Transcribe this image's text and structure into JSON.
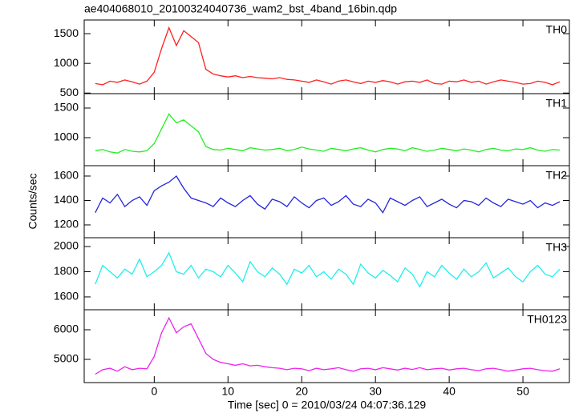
{
  "chart_data": [
    {
      "type": "line",
      "title": "ae404068010_20100324040736_wam2_bst_4band_16bin.qdp",
      "label": "TH0",
      "color": "#ff2020",
      "x": [
        -8,
        -7,
        -6,
        -5,
        -4,
        -3,
        -2,
        -1,
        0,
        1,
        2,
        3,
        4,
        5,
        6,
        7,
        8,
        9,
        10,
        11,
        12,
        13,
        14,
        15,
        16,
        17,
        18,
        19,
        20,
        21,
        22,
        23,
        24,
        25,
        26,
        27,
        28,
        29,
        30,
        31,
        32,
        33,
        34,
        35,
        36,
        37,
        38,
        39,
        40,
        41,
        42,
        43,
        44,
        45,
        46,
        47,
        48,
        49,
        50,
        51,
        52,
        53,
        54,
        55
      ],
      "values": [
        660,
        640,
        700,
        680,
        720,
        690,
        650,
        700,
        850,
        1250,
        1600,
        1300,
        1550,
        1450,
        1350,
        900,
        820,
        790,
        770,
        790,
        760,
        780,
        760,
        750,
        740,
        760,
        730,
        720,
        700,
        680,
        720,
        690,
        650,
        700,
        720,
        690,
        660,
        700,
        680,
        710,
        690,
        650,
        690,
        700,
        680,
        720,
        660,
        650,
        700,
        690,
        720,
        680,
        700,
        650,
        690,
        720,
        700,
        680,
        650,
        660,
        700,
        680,
        640,
        690
      ],
      "xlim": [
        -9.5,
        56.3
      ],
      "xticks": [
        0,
        10,
        20,
        30,
        40,
        50
      ],
      "ylim": [
        490,
        1730
      ],
      "yticks": [
        500,
        1000,
        1500
      ]
    },
    {
      "type": "line",
      "label": "TH1",
      "color": "#22ee22",
      "x": [
        -8,
        -7,
        -6,
        -5,
        -4,
        -3,
        -2,
        -1,
        0,
        1,
        2,
        3,
        4,
        5,
        6,
        7,
        8,
        9,
        10,
        11,
        12,
        13,
        14,
        15,
        16,
        17,
        18,
        19,
        20,
        21,
        22,
        23,
        24,
        25,
        26,
        27,
        28,
        29,
        30,
        31,
        32,
        33,
        34,
        35,
        36,
        37,
        38,
        39,
        40,
        41,
        42,
        43,
        44,
        45,
        46,
        47,
        48,
        49,
        50,
        51,
        52,
        53,
        54,
        55
      ],
      "values": [
        780,
        800,
        760,
        740,
        800,
        770,
        760,
        780,
        900,
        1150,
        1400,
        1250,
        1300,
        1200,
        1100,
        850,
        800,
        790,
        820,
        800,
        780,
        830,
        810,
        790,
        800,
        820,
        780,
        800,
        840,
        810,
        790,
        770,
        820,
        800,
        780,
        810,
        830,
        790,
        760,
        800,
        820,
        810,
        780,
        830,
        800,
        770,
        790,
        820,
        800,
        780,
        810,
        790,
        760,
        800,
        820,
        790,
        780,
        810,
        800,
        830,
        790,
        770,
        800,
        790
      ],
      "xlim": [
        -9.5,
        56.3
      ],
      "xticks": [
        0,
        10,
        20,
        30,
        40,
        50
      ],
      "ylim": [
        527,
        1743
      ],
      "yticks": [
        1000,
        1500
      ]
    },
    {
      "type": "line",
      "label": "TH2",
      "color": "#2626dd",
      "ylabel": "Counts/sec",
      "x": [
        -8,
        -7,
        -6,
        -5,
        -4,
        -3,
        -2,
        -1,
        0,
        1,
        2,
        3,
        4,
        5,
        6,
        7,
        8,
        9,
        10,
        11,
        12,
        13,
        14,
        15,
        16,
        17,
        18,
        19,
        20,
        21,
        22,
        23,
        24,
        25,
        26,
        27,
        28,
        29,
        30,
        31,
        32,
        33,
        34,
        35,
        36,
        37,
        38,
        39,
        40,
        41,
        42,
        43,
        44,
        45,
        46,
        47,
        48,
        49,
        50,
        51,
        52,
        53,
        54,
        55
      ],
      "values": [
        1300,
        1420,
        1380,
        1450,
        1350,
        1400,
        1430,
        1360,
        1480,
        1520,
        1550,
        1600,
        1500,
        1420,
        1400,
        1380,
        1350,
        1420,
        1380,
        1350,
        1400,
        1440,
        1370,
        1330,
        1410,
        1390,
        1350,
        1430,
        1380,
        1340,
        1400,
        1420,
        1360,
        1390,
        1440,
        1370,
        1350,
        1410,
        1380,
        1300,
        1420,
        1390,
        1360,
        1400,
        1430,
        1350,
        1380,
        1410,
        1370,
        1340,
        1400,
        1390,
        1360,
        1420,
        1380,
        1350,
        1410,
        1390,
        1370,
        1400,
        1340,
        1380,
        1360,
        1390
      ],
      "xlim": [
        -9.5,
        56.3
      ],
      "xticks": [
        0,
        10,
        20,
        30,
        40,
        50
      ],
      "ylim": [
        1095,
        1685
      ],
      "yticks": [
        1200,
        1400,
        1600
      ]
    },
    {
      "type": "line",
      "label": "TH3",
      "color": "#22eeee",
      "x": [
        -8,
        -7,
        -6,
        -5,
        -4,
        -3,
        -2,
        -1,
        0,
        1,
        2,
        3,
        4,
        5,
        6,
        7,
        8,
        9,
        10,
        11,
        12,
        13,
        14,
        15,
        16,
        17,
        18,
        19,
        20,
        21,
        22,
        23,
        24,
        25,
        26,
        27,
        28,
        29,
        30,
        31,
        32,
        33,
        34,
        35,
        36,
        37,
        38,
        39,
        40,
        41,
        42,
        43,
        44,
        45,
        46,
        47,
        48,
        49,
        50,
        51,
        52,
        53,
        54,
        55
      ],
      "values": [
        1700,
        1850,
        1800,
        1750,
        1820,
        1780,
        1900,
        1760,
        1800,
        1850,
        1950,
        1800,
        1780,
        1850,
        1750,
        1820,
        1800,
        1760,
        1850,
        1790,
        1720,
        1880,
        1800,
        1760,
        1830,
        1780,
        1700,
        1820,
        1790,
        1850,
        1760,
        1800,
        1740,
        1820,
        1780,
        1700,
        1860,
        1790,
        1750,
        1810,
        1770,
        1720,
        1830,
        1780,
        1680,
        1800,
        1760,
        1850,
        1790,
        1740,
        1820,
        1760,
        1800,
        1870,
        1750,
        1790,
        1830,
        1760,
        1720,
        1800,
        1850,
        1780,
        1760,
        1820
      ],
      "xlim": [
        -9.5,
        56.3
      ],
      "xticks": [
        0,
        10,
        20,
        30,
        40,
        50
      ],
      "ylim": [
        1498,
        2070
      ],
      "yticks": [
        1600,
        1800,
        2000
      ]
    },
    {
      "type": "line",
      "label": "TH0123",
      "color": "#ee22ee",
      "xlabel": "Time [sec] 0 = 2010/03/24 04:07:36.129",
      "x": [
        -8,
        -7,
        -6,
        -5,
        -4,
        -3,
        -2,
        -1,
        0,
        1,
        2,
        3,
        4,
        5,
        6,
        7,
        8,
        9,
        10,
        11,
        12,
        13,
        14,
        15,
        16,
        17,
        18,
        19,
        20,
        21,
        22,
        23,
        24,
        25,
        26,
        27,
        28,
        29,
        30,
        31,
        32,
        33,
        34,
        35,
        36,
        37,
        38,
        39,
        40,
        41,
        42,
        43,
        44,
        45,
        46,
        47,
        48,
        49,
        50,
        51,
        52,
        53,
        54,
        55
      ],
      "values": [
        4500,
        4650,
        4700,
        4600,
        4750,
        4650,
        4700,
        4680,
        5100,
        5900,
        6400,
        5900,
        6100,
        6200,
        5700,
        5200,
        5000,
        4900,
        4850,
        4800,
        4850,
        4780,
        4800,
        4750,
        4720,
        4700,
        4650,
        4700,
        4680,
        4620,
        4700,
        4650,
        4680,
        4720,
        4650,
        4600,
        4680,
        4700,
        4650,
        4720,
        4680,
        4640,
        4700,
        4660,
        4720,
        4650,
        4680,
        4700,
        4640,
        4680,
        4700,
        4650,
        4620,
        4680,
        4700,
        4650,
        4600,
        4640,
        4680,
        4700,
        4650,
        4620,
        4600,
        4680
      ],
      "xlim": [
        -9.5,
        56.3
      ],
      "xticks": [
        0,
        10,
        20,
        30,
        40,
        50
      ],
      "ylim": [
        4216,
        6676
      ],
      "yticks": [
        5000,
        6000
      ]
    }
  ]
}
